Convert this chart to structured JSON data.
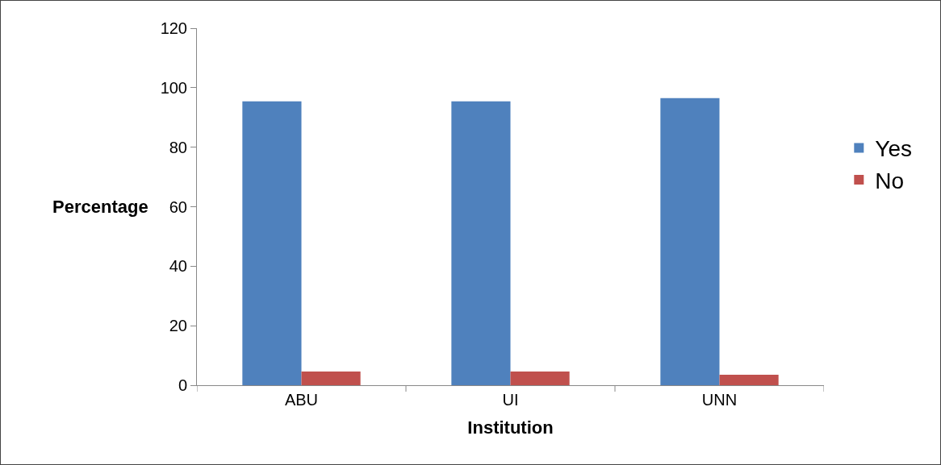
{
  "chart_data": {
    "type": "bar",
    "xlabel": "Institution",
    "ylabel": "Percentage",
    "categories": [
      "ABU",
      "UI",
      "UNN"
    ],
    "series": [
      {
        "name": "Yes",
        "color": "#4f81bd",
        "values": [
          95.4,
          95.4,
          96.5
        ]
      },
      {
        "name": "No",
        "color": "#c0504d",
        "values": [
          4.6,
          4.6,
          3.5
        ]
      }
    ],
    "ylim": [
      0,
      120
    ],
    "yticks": [
      0,
      20,
      40,
      60,
      80,
      100,
      120
    ],
    "grid": false,
    "legend": "right"
  }
}
